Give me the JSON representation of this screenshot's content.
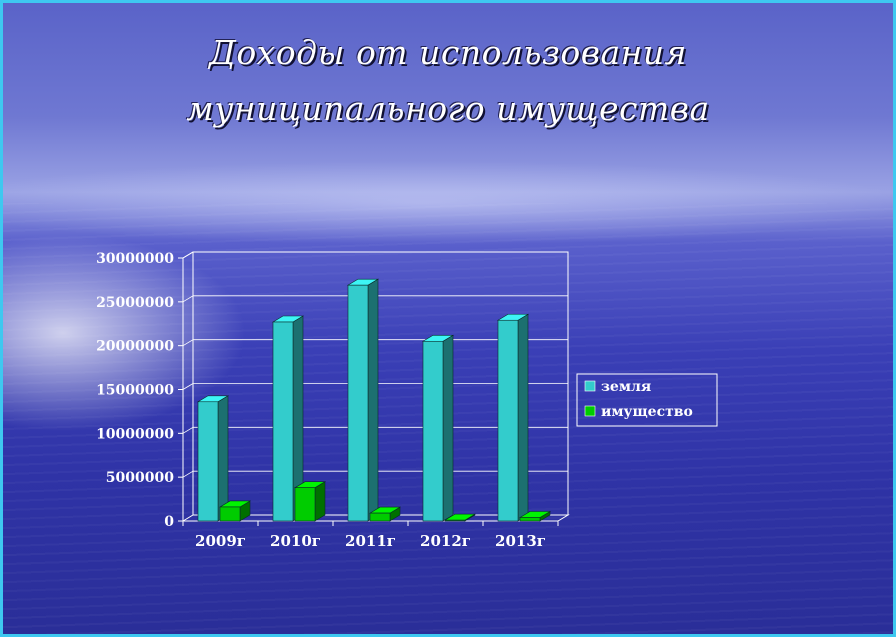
{
  "slide": {
    "title_line1": "Доходы от использования",
    "title_line2": "муниципального имущества"
  },
  "chart_data": {
    "type": "bar",
    "style": "3d-clustered-column",
    "categories": [
      "2009г",
      "2010г",
      "2011г",
      "2012г",
      "2013г"
    ],
    "series": [
      {
        "name": "земля",
        "color": "#33cccc",
        "values": [
          13600000,
          22700000,
          26900000,
          20500000,
          22900000
        ]
      },
      {
        "name": "имущество",
        "color": "#00cc00",
        "values": [
          1600000,
          3800000,
          900000,
          100000,
          400000
        ]
      }
    ],
    "ylim": [
      0,
      30000000
    ],
    "yticks": [
      "0",
      "5000000",
      "10000000",
      "15000000",
      "20000000",
      "25000000",
      "30000000"
    ],
    "grid": true,
    "legend_position": "right",
    "colors": {
      "text": "#ffffff",
      "border": "#3ec8f0"
    }
  }
}
